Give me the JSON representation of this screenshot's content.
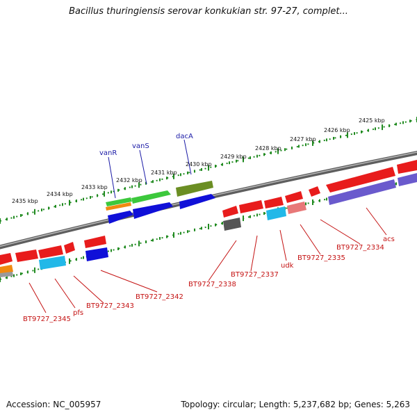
{
  "title": "Bacillus thuringiensis serovar konkukian str. 97-27, complet...",
  "footer": {
    "accession": "Accession: NC_005957",
    "summary": "Topology: circular; Length: 5,237,682 bp; Genes: 5,263"
  },
  "scale_labels": [
    "2425 kbp",
    "2426 kbp",
    "2427 kbp",
    "2428 kbp",
    "2429 kbp",
    "2430 kbp",
    "2431 kbp",
    "2432 kbp",
    "2433 kbp",
    "2434 kbp",
    "2435 kbp"
  ],
  "top_gene_labels": [
    "vanR",
    "vanS",
    "dacA"
  ],
  "bottom_gene_labels": [
    "acs",
    "BT9727_2334",
    "BT9727_2335",
    "udk",
    "BT9727_2337",
    "BT9727_2338",
    "BT9727_2342",
    "BT9727_2343",
    "pfs",
    "BT9727_2345"
  ],
  "colors": {
    "backbone": "#7a7a7a",
    "tick": "#1f8a1f",
    "red": "#e81c1c",
    "blue": "#1010d8",
    "green": "#3cc83c",
    "olive": "#6b8e23",
    "orange": "#f08a10",
    "cyan": "#22b8e8",
    "pink": "#e87878",
    "purple": "#6a5acd",
    "gray": "#555555",
    "label_top": "#1a1aa6",
    "label_bottom": "#c41212"
  }
}
